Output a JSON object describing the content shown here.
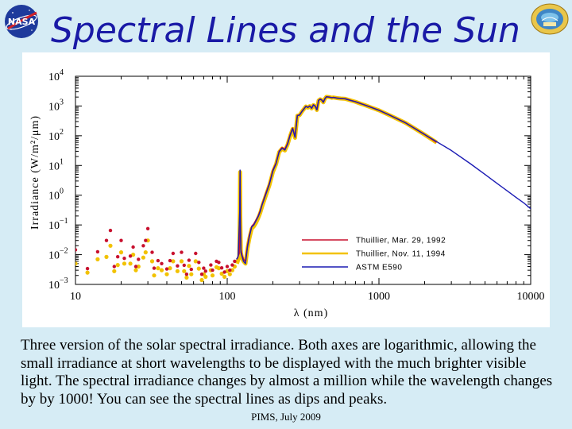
{
  "slide": {
    "title": "Spectral Lines and the Sun",
    "caption": "Three version of the solar spectral irradiance. Both axes are logarithmic, allowing the small irradiance at short wavelengths to be displayed with the much brighter visible light. The spectral irradiance changes by almost a million while the wavelength changes by by 1000! You can see the spectral lines as dips and peaks.",
    "footer": "PIMS, July 2009",
    "logos": {
      "left": "nasa-meatball-logo",
      "right": "ims-globe-logo"
    }
  },
  "colors": {
    "background": "#d6ecf5",
    "title": "#1a1aa6",
    "thuillier_1992": "#c8102e",
    "thuillier_1994": "#f2c200",
    "astm": "#1b1bb4"
  },
  "chart_data": {
    "type": "line",
    "x_scale": "log",
    "y_scale": "log",
    "xlim": [
      10,
      10000
    ],
    "ylim": [
      0.001,
      10000
    ],
    "xlabel": "λ (nm)",
    "ylabel": "Irradiance (W/m²/μm)",
    "x_ticks": [
      "10",
      "100",
      "1000",
      "10000"
    ],
    "y_ticks": [
      {
        "base": "10",
        "exp": "4"
      },
      {
        "base": "10",
        "exp": "3"
      },
      {
        "base": "10",
        "exp": "2"
      },
      {
        "base": "10",
        "exp": "1"
      },
      {
        "base": "10",
        "exp": "0"
      },
      {
        "base": "10",
        "exp": "−1"
      },
      {
        "base": "10",
        "exp": "−2"
      },
      {
        "base": "10",
        "exp": "−3"
      }
    ],
    "legend_position": "lower-right",
    "series": [
      {
        "name": "Thuillier, Mar. 29, 1992",
        "color": "#c8102e",
        "points": [
          [
            10,
            0.0145
          ],
          [
            12,
            0.0034
          ],
          [
            14,
            0.0125
          ],
          [
            16,
            0.03
          ],
          [
            17,
            0.065
          ],
          [
            18,
            0.004
          ],
          [
            19,
            0.0085
          ],
          [
            20,
            0.03
          ],
          [
            21,
            0.0075
          ],
          [
            23,
            0.009
          ],
          [
            24,
            0.018
          ],
          [
            25,
            0.004
          ],
          [
            26,
            0.007
          ],
          [
            28,
            0.02
          ],
          [
            29,
            0.03
          ],
          [
            30,
            0.075
          ],
          [
            32,
            0.012
          ],
          [
            33,
            0.0035
          ],
          [
            35,
            0.0063
          ],
          [
            37,
            0.005
          ],
          [
            40,
            0.0033
          ],
          [
            42,
            0.0063
          ],
          [
            44,
            0.011
          ],
          [
            47,
            0.0042
          ],
          [
            50,
            0.012
          ],
          [
            52,
            0.0044
          ],
          [
            54,
            0.0022
          ],
          [
            56,
            0.0065
          ],
          [
            58,
            0.0032
          ],
          [
            62,
            0.011
          ],
          [
            65,
            0.0055
          ],
          [
            68,
            0.0022
          ],
          [
            70,
            0.0035
          ],
          [
            72,
            0.0028
          ],
          [
            78,
            0.0045
          ],
          [
            80,
            0.003
          ],
          [
            85,
            0.006
          ],
          [
            88,
            0.0055
          ],
          [
            92,
            0.0036
          ],
          [
            96,
            0.0026
          ],
          [
            100,
            0.004
          ],
          [
            104,
            0.003
          ],
          [
            108,
            0.0045
          ],
          [
            112,
            0.006
          ],
          [
            116,
            0.007
          ],
          [
            118,
            0.009
          ],
          [
            120,
            0.011
          ],
          [
            121,
            0.35
          ],
          [
            121.6,
            6.5
          ],
          [
            122,
            0.25
          ],
          [
            123,
            0.015
          ],
          [
            125,
            0.01
          ],
          [
            128,
            0.007
          ],
          [
            132,
            0.006
          ],
          [
            136,
            0.02
          ],
          [
            140,
            0.045
          ],
          [
            145,
            0.09
          ],
          [
            150,
            0.11
          ],
          [
            155,
            0.15
          ],
          [
            160,
            0.2
          ],
          [
            165,
            0.3
          ],
          [
            170,
            0.5
          ],
          [
            180,
            1.2
          ],
          [
            190,
            2.5
          ],
          [
            200,
            7
          ],
          [
            210,
            12
          ],
          [
            220,
            30
          ],
          [
            230,
            40
          ],
          [
            240,
            35
          ],
          [
            250,
            55
          ],
          [
            260,
            110
          ],
          [
            270,
            180
          ],
          [
            280,
            90
          ],
          [
            290,
            480
          ],
          [
            300,
            500
          ],
          [
            310,
            650
          ],
          [
            320,
            800
          ],
          [
            330,
            980
          ],
          [
            340,
            900
          ],
          [
            350,
            1000
          ],
          [
            360,
            850
          ],
          [
            370,
            1100
          ],
          [
            380,
            1000
          ],
          [
            390,
            750
          ],
          [
            400,
            1550
          ],
          [
            410,
            1700
          ],
          [
            420,
            1600
          ],
          [
            430,
            1350
          ],
          [
            440,
            1750
          ],
          [
            450,
            2050
          ],
          [
            470,
            2000
          ],
          [
            490,
            1900
          ],
          [
            500,
            1950
          ],
          [
            530,
            1850
          ],
          [
            560,
            1800
          ],
          [
            600,
            1750
          ],
          [
            650,
            1550
          ],
          [
            700,
            1400
          ],
          [
            760,
            1200
          ],
          [
            800,
            1100
          ],
          [
            900,
            880
          ],
          [
            1000,
            720
          ],
          [
            1200,
            470
          ],
          [
            1500,
            270
          ],
          [
            2000,
            110
          ],
          [
            2400,
            60
          ]
        ]
      },
      {
        "name": "Thuillier, Nov. 11, 1994",
        "color": "#f2c200",
        "points": [
          [
            10,
            0.005
          ],
          [
            12,
            0.0025
          ],
          [
            14,
            0.007
          ],
          [
            16,
            0.0084
          ],
          [
            17,
            0.02
          ],
          [
            18,
            0.0028
          ],
          [
            19,
            0.0045
          ],
          [
            20,
            0.012
          ],
          [
            21,
            0.005
          ],
          [
            23,
            0.005
          ],
          [
            24,
            0.01
          ],
          [
            25,
            0.003
          ],
          [
            26,
            0.004
          ],
          [
            28,
            0.008
          ],
          [
            29,
            0.012
          ],
          [
            30,
            0.03
          ],
          [
            32,
            0.006
          ],
          [
            33,
            0.002
          ],
          [
            35,
            0.0035
          ],
          [
            37,
            0.003
          ],
          [
            40,
            0.0022
          ],
          [
            42,
            0.0035
          ],
          [
            44,
            0.006
          ],
          [
            47,
            0.0028
          ],
          [
            50,
            0.006
          ],
          [
            52,
            0.0028
          ],
          [
            54,
            0.0017
          ],
          [
            56,
            0.0042
          ],
          [
            58,
            0.0022
          ],
          [
            62,
            0.006
          ],
          [
            65,
            0.0034
          ],
          [
            68,
            0.0014
          ],
          [
            70,
            0.0022
          ],
          [
            72,
            0.0018
          ],
          [
            78,
            0.003
          ],
          [
            80,
            0.002
          ],
          [
            85,
            0.0038
          ],
          [
            88,
            0.0035
          ],
          [
            92,
            0.0023
          ],
          [
            96,
            0.0018
          ],
          [
            100,
            0.0028
          ],
          [
            104,
            0.0022
          ],
          [
            108,
            0.003
          ],
          [
            112,
            0.004
          ],
          [
            116,
            0.005
          ],
          [
            118,
            0.0065
          ],
          [
            120,
            0.008
          ],
          [
            121,
            0.25
          ],
          [
            121.6,
            6
          ],
          [
            122,
            0.2
          ],
          [
            123,
            0.012
          ],
          [
            125,
            0.008
          ],
          [
            128,
            0.006
          ],
          [
            132,
            0.005
          ],
          [
            136,
            0.016
          ],
          [
            140,
            0.035
          ],
          [
            145,
            0.075
          ],
          [
            150,
            0.09
          ],
          [
            155,
            0.12
          ],
          [
            160,
            0.17
          ],
          [
            165,
            0.25
          ],
          [
            170,
            0.42
          ],
          [
            180,
            1.0
          ],
          [
            190,
            2.2
          ],
          [
            200,
            6
          ],
          [
            210,
            11
          ],
          [
            220,
            28
          ],
          [
            230,
            37
          ],
          [
            240,
            32
          ],
          [
            250,
            50
          ],
          [
            260,
            100
          ],
          [
            270,
            170
          ],
          [
            280,
            85
          ],
          [
            290,
            470
          ],
          [
            300,
            490
          ],
          [
            310,
            640
          ],
          [
            320,
            790
          ],
          [
            330,
            960
          ],
          [
            340,
            880
          ],
          [
            350,
            990
          ],
          [
            360,
            830
          ],
          [
            370,
            1080
          ],
          [
            380,
            980
          ],
          [
            390,
            730
          ],
          [
            400,
            1530
          ],
          [
            410,
            1680
          ],
          [
            420,
            1580
          ],
          [
            430,
            1330
          ],
          [
            440,
            1730
          ],
          [
            450,
            2030
          ],
          [
            470,
            1990
          ],
          [
            490,
            1890
          ],
          [
            500,
            1940
          ],
          [
            530,
            1840
          ],
          [
            560,
            1790
          ],
          [
            600,
            1740
          ],
          [
            650,
            1540
          ],
          [
            700,
            1390
          ],
          [
            760,
            1190
          ],
          [
            800,
            1090
          ],
          [
            900,
            870
          ],
          [
            1000,
            715
          ],
          [
            1200,
            465
          ],
          [
            1500,
            268
          ],
          [
            2000,
            109
          ],
          [
            2400,
            59
          ]
        ]
      },
      {
        "name": "ASTM E590",
        "color": "#1b1bb4",
        "points": [
          [
            115,
            0.007
          ],
          [
            118,
            0.0085
          ],
          [
            121,
            0.3
          ],
          [
            121.6,
            7
          ],
          [
            122,
            0.2
          ],
          [
            123,
            0.012
          ],
          [
            125,
            0.009
          ],
          [
            128,
            0.006
          ],
          [
            132,
            0.005
          ],
          [
            136,
            0.018
          ],
          [
            140,
            0.04
          ],
          [
            145,
            0.085
          ],
          [
            150,
            0.1
          ],
          [
            155,
            0.14
          ],
          [
            160,
            0.19
          ],
          [
            165,
            0.28
          ],
          [
            170,
            0.48
          ],
          [
            180,
            1.1
          ],
          [
            190,
            2.4
          ],
          [
            200,
            6.5
          ],
          [
            210,
            11.5
          ],
          [
            220,
            29
          ],
          [
            230,
            38
          ],
          [
            240,
            33
          ],
          [
            250,
            52
          ],
          [
            260,
            105
          ],
          [
            270,
            175
          ],
          [
            280,
            88
          ],
          [
            290,
            475
          ],
          [
            300,
            495
          ],
          [
            310,
            645
          ],
          [
            320,
            795
          ],
          [
            330,
            970
          ],
          [
            340,
            890
          ],
          [
            350,
            995
          ],
          [
            360,
            840
          ],
          [
            370,
            1090
          ],
          [
            380,
            990
          ],
          [
            390,
            740
          ],
          [
            400,
            1540
          ],
          [
            410,
            1690
          ],
          [
            420,
            1590
          ],
          [
            430,
            1340
          ],
          [
            440,
            1740
          ],
          [
            450,
            2040
          ],
          [
            470,
            1995
          ],
          [
            490,
            1895
          ],
          [
            500,
            1945
          ],
          [
            530,
            1845
          ],
          [
            560,
            1795
          ],
          [
            600,
            1745
          ],
          [
            650,
            1545
          ],
          [
            700,
            1395
          ],
          [
            760,
            1195
          ],
          [
            800,
            1095
          ],
          [
            900,
            875
          ],
          [
            1000,
            718
          ],
          [
            1200,
            468
          ],
          [
            1500,
            269
          ],
          [
            2000,
            110
          ],
          [
            3000,
            32
          ],
          [
            4000,
            11.5
          ],
          [
            5000,
            5
          ],
          [
            6000,
            2.5
          ],
          [
            7000,
            1.4
          ],
          [
            8000,
            0.85
          ],
          [
            9000,
            0.55
          ],
          [
            10000,
            0.35
          ]
        ]
      }
    ]
  }
}
